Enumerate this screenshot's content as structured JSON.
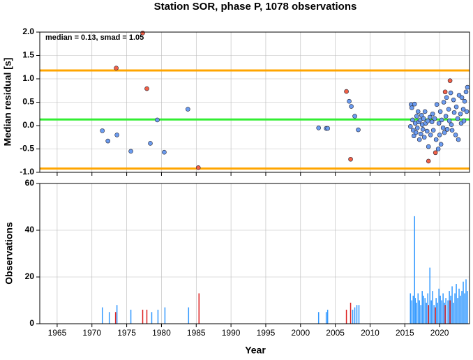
{
  "chart_data": [
    {
      "type": "scatter",
      "title": "Station SOR, phase P, 1078 observations",
      "annotation": "median = 0.13, smad = 1.05",
      "y_label": "Median residual [s]",
      "xlim": [
        1962.5,
        2024.3
      ],
      "ylim": [
        -1.0,
        2.0
      ],
      "xticks": [
        1965,
        1970,
        1975,
        1980,
        1985,
        1990,
        1995,
        2000,
        2005,
        2010,
        2015,
        2020
      ],
      "yticks": [
        {
          "value": 2,
          "label": "2.0"
        },
        1.5,
        {
          "value": 1,
          "label": "1.0"
        },
        0.5,
        {
          "value": 0,
          "label": "0.0"
        },
        -0.5,
        {
          "value": -1,
          "label": "-1.0"
        }
      ],
      "grid": true,
      "hlines": [
        {
          "value": 1.18,
          "color": "#ffa500"
        },
        {
          "value": -0.92,
          "color": "#ffa500"
        },
        {
          "value": 0.13,
          "color": "#33ee33"
        }
      ],
      "series": [
        {
          "color": "#6b9cf0",
          "x": [
            1971.5,
            1972.3,
            1973.6,
            1975.6,
            1978.4,
            1979.4,
            1980.4,
            1983.8,
            2002.6,
            2003.7,
            2003.9,
            2007.0,
            2007.3,
            2007.8,
            2008.3,
            2015.8,
            2015.9,
            2016.0,
            2016.1,
            2016.2,
            2016.3,
            2016.4,
            2016.5,
            2016.6,
            2016.7,
            2016.8,
            2016.9,
            2017.0,
            2017.1,
            2017.2,
            2017.3,
            2017.4,
            2017.5,
            2017.6,
            2017.7,
            2017.8,
            2017.9,
            2018.0,
            2018.2,
            2018.3,
            2018.4,
            2018.6,
            2018.7,
            2018.9,
            2019.0,
            2019.1,
            2019.3,
            2019.5,
            2019.6,
            2019.8,
            2019.9,
            2020.0,
            2020.1,
            2020.2,
            2020.3,
            2020.5,
            2020.6,
            2020.7,
            2020.9,
            2021.0,
            2021.1,
            2021.3,
            2021.4,
            2021.6,
            2021.7,
            2021.8,
            2022.0,
            2022.1,
            2022.3,
            2022.4,
            2022.6,
            2022.7,
            2022.8,
            2023.0,
            2023.1,
            2023.2,
            2023.4,
            2023.5,
            2023.6,
            2023.8,
            2023.9,
            2024.0
          ],
          "values": [
            -0.11,
            -0.33,
            -0.2,
            -0.55,
            -0.38,
            0.12,
            -0.57,
            0.35,
            -0.05,
            -0.06,
            -0.06,
            0.52,
            0.41,
            0.2,
            -0.09,
            -0.02,
            0.45,
            0.38,
            0.12,
            -0.1,
            -0.22,
            0.46,
            0.05,
            -0.15,
            0.2,
            -0.05,
            0.3,
            0.08,
            -0.3,
            0.12,
            -0.18,
            0.22,
            0.02,
            -0.08,
            0.15,
            -0.25,
            0.3,
            0.05,
            -0.12,
            0.1,
            -0.45,
            0.18,
            -0.2,
            0.08,
            0.25,
            -0.1,
            0.15,
            -0.3,
            0.45,
            -0.5,
            0.05,
            -0.2,
            0.3,
            -0.4,
            0.12,
            -0.05,
            0.5,
            -0.15,
            0.2,
            0.6,
            -0.08,
            0.35,
            0.1,
            0.7,
            0.02,
            -0.1,
            0.55,
            0.28,
            -0.2,
            0.4,
            0.15,
            -0.3,
            0.65,
            0.25,
            0.05,
            0.6,
            0.35,
            0.1,
            0.52,
            0.72,
            0.3,
            0.82
          ]
        },
        {
          "color": "#f26046",
          "x": [
            1973.5,
            1977.3,
            1977.9,
            1985.3,
            2006.6,
            2007.2,
            2018.4,
            2019.4,
            2020.8,
            2021.5
          ],
          "values": [
            1.23,
            1.98,
            0.79,
            -0.9,
            0.73,
            -0.72,
            -0.76,
            -0.58,
            0.72,
            0.96
          ]
        }
      ]
    },
    {
      "type": "bar",
      "y_label": "Observations",
      "x_label": "Year",
      "xlim": [
        1962.5,
        2024.3
      ],
      "ylim": [
        0,
        60
      ],
      "xticks": [
        1965,
        1970,
        1975,
        1980,
        1985,
        1990,
        1995,
        2000,
        2005,
        2010,
        2015,
        2020
      ],
      "yticks": [
        0,
        20,
        40,
        60
      ],
      "grid": true,
      "series": [
        {
          "color": "#3399ff",
          "x": [
            1971.5,
            1972.5,
            1973.6,
            1975.6,
            1978.6,
            1979.5,
            1980.5,
            1983.9,
            2002.6,
            2003.7,
            2003.9,
            2007.5,
            2007.8,
            2008.1,
            2008.4,
            2015.8,
            2016.0,
            2016.2,
            2016.4,
            2016.5,
            2016.7,
            2016.9,
            2017.1,
            2017.3,
            2017.5,
            2017.7,
            2017.9,
            2018.1,
            2018.3,
            2018.6,
            2018.8,
            2019.0,
            2019.2,
            2019.5,
            2019.7,
            2019.9,
            2020.1,
            2020.3,
            2020.5,
            2020.7,
            2020.9,
            2021.2,
            2021.4,
            2021.6,
            2021.8,
            2022.0,
            2022.2,
            2022.4,
            2022.6,
            2022.8,
            2023.0,
            2023.2,
            2023.4,
            2023.6,
            2023.8,
            2024.0
          ],
          "values": [
            7,
            5,
            8,
            6,
            5,
            6,
            7,
            7,
            5,
            5,
            6,
            6,
            7,
            8,
            8,
            13,
            10,
            12,
            46,
            11,
            9,
            13,
            10,
            8,
            14,
            12,
            11,
            9,
            13,
            24,
            10,
            14,
            8,
            11,
            9,
            15,
            12,
            10,
            13,
            9,
            11,
            10,
            14,
            12,
            16,
            9,
            13,
            17,
            11,
            15,
            12,
            14,
            18,
            13,
            19,
            14
          ]
        },
        {
          "color": "#dd2222",
          "x": [
            1973.4,
            1977.3,
            1977.9,
            1985.4,
            2006.6,
            2007.2,
            2018.4,
            2019.4,
            2020.8,
            2021.5
          ],
          "values": [
            5,
            6,
            6,
            13,
            6,
            9,
            8,
            7,
            8,
            10
          ]
        }
      ]
    }
  ]
}
